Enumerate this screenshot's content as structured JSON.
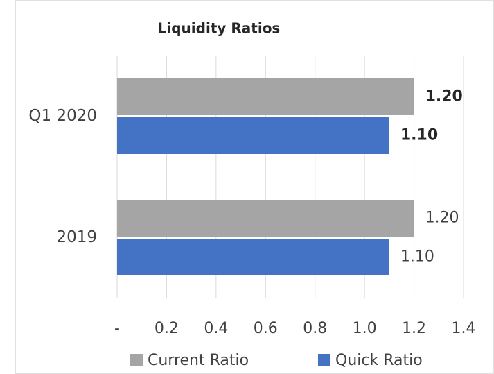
{
  "chart_data": {
    "type": "bar",
    "orientation": "horizontal",
    "title": "Liquidity Ratios",
    "categories": [
      "Q1 2020",
      "2019"
    ],
    "series": [
      {
        "name": "Current Ratio",
        "color": "#a5a5a5",
        "values": [
          1.2,
          1.2
        ],
        "value_labels": [
          "1.20",
          "1.20"
        ]
      },
      {
        "name": "Quick Ratio",
        "color": "#4472c4",
        "values": [
          1.1,
          1.1
        ],
        "value_labels": [
          "1.10",
          "1.10"
        ]
      }
    ],
    "xlim": [
      0,
      1.4
    ],
    "xticks": [
      {
        "value": 0,
        "label": "-"
      },
      0.2,
      0.4,
      0.6,
      0.8,
      {
        "value": 1,
        "label": "1.0"
      },
      1.2,
      1.4
    ],
    "grid": true,
    "legend": "bottom"
  }
}
